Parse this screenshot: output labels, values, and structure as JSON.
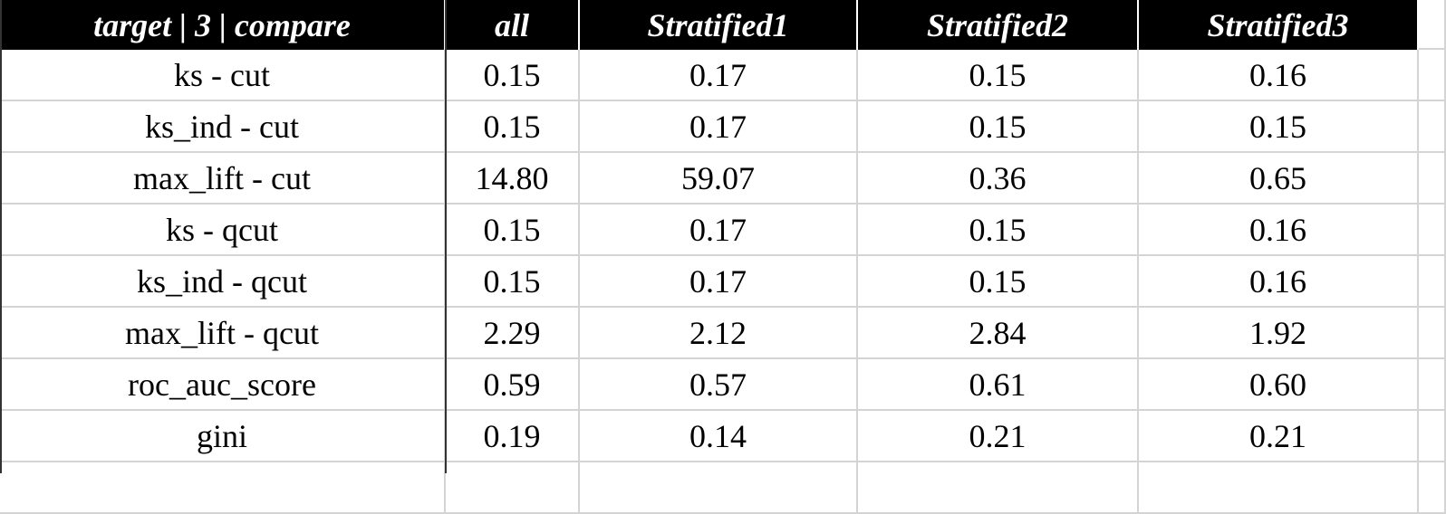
{
  "table": {
    "header": [
      "target | 3 | compare",
      "all",
      "Stratified1",
      "Stratified2",
      "Stratified3"
    ],
    "rows": [
      [
        "ks - cut",
        "0.15",
        "0.17",
        "0.15",
        "0.16"
      ],
      [
        "ks_ind - cut",
        "0.15",
        "0.17",
        "0.15",
        "0.15"
      ],
      [
        "max_lift - cut",
        "14.80",
        "59.07",
        "0.36",
        "0.65"
      ],
      [
        "ks - qcut",
        "0.15",
        "0.17",
        "0.15",
        "0.16"
      ],
      [
        "ks_ind - qcut",
        "0.15",
        "0.17",
        "0.15",
        "0.16"
      ],
      [
        "max_lift - qcut",
        "2.29",
        "2.12",
        "2.84",
        "1.92"
      ],
      [
        "roc_auc_score",
        "0.59",
        "0.57",
        "0.61",
        "0.60"
      ],
      [
        "gini",
        "0.19",
        "0.14",
        "0.21",
        "0.21"
      ]
    ]
  }
}
